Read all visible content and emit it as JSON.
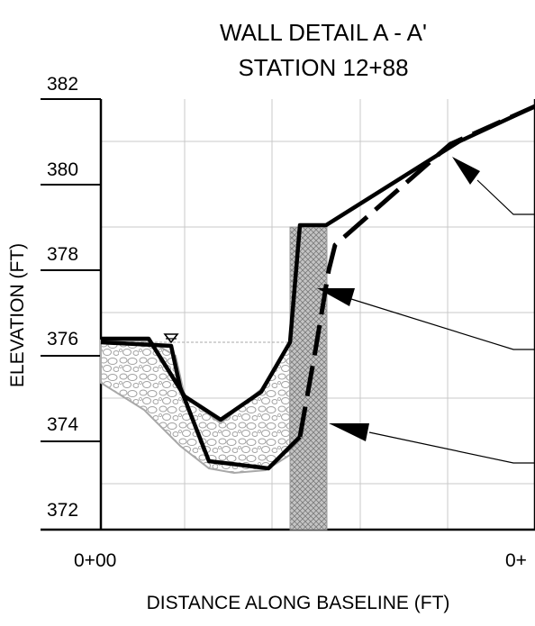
{
  "title_line1": "WALL DETAIL A - A'",
  "title_line2": "STATION 12+88",
  "xlabel": "DISTANCE ALONG BASELINE (FT)",
  "ylabel": "ELEVATION (FT)",
  "y_ticks": [
    "382",
    "380",
    "378",
    "376",
    "374",
    "372"
  ],
  "x_ticks": [
    "0+00",
    "0+"
  ],
  "colors": {
    "line": "#000000",
    "grid": "#c8c8c8",
    "riprap": "#9a9a9a",
    "wall_fill": "#b5b5b5"
  }
}
